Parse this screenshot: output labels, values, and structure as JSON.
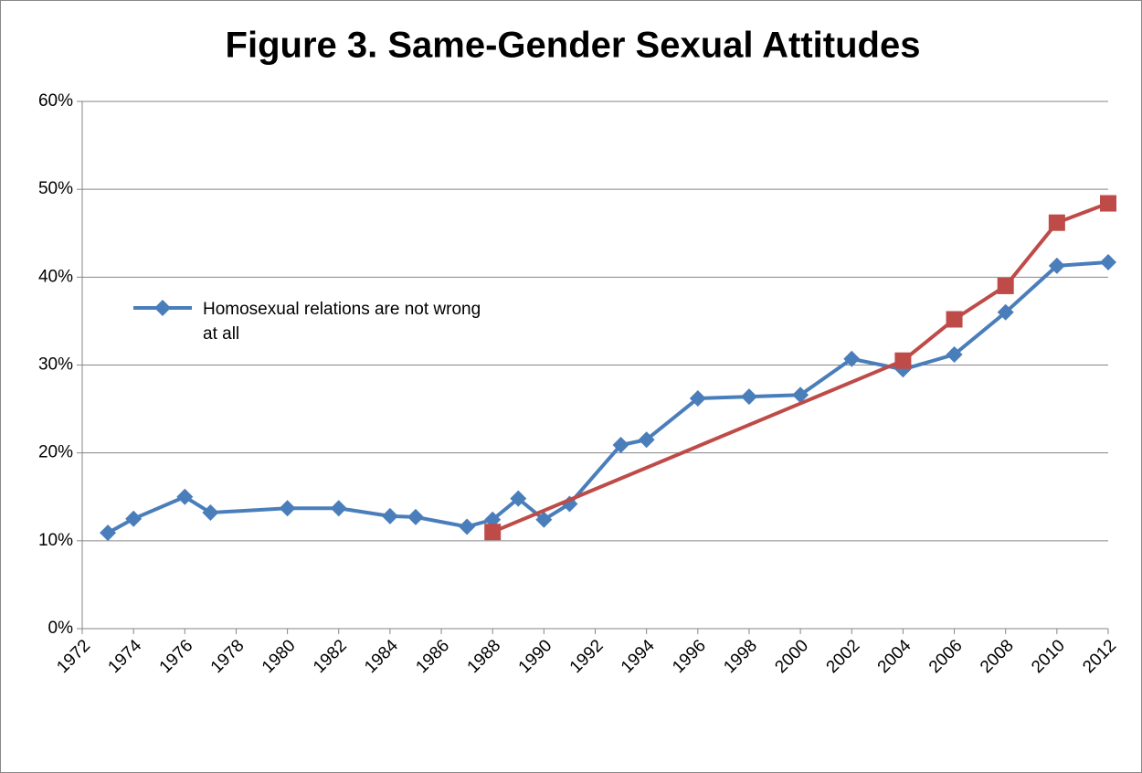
{
  "chart_data": {
    "type": "line",
    "title": "Figure 3. Same-Gender Sexual Attitudes",
    "x": [
      1973,
      1974,
      1976,
      1977,
      1980,
      1982,
      1984,
      1985,
      1987,
      1988,
      1989,
      1990,
      1991,
      1993,
      1994,
      1996,
      1998,
      2000,
      2002,
      2004,
      2006,
      2008,
      2010,
      2012
    ],
    "series": [
      {
        "name": "Homosexual relations are not wrong at all",
        "color": "#4a7ebb",
        "marker": "diamond",
        "values": [
          10.9,
          12.5,
          15.0,
          13.2,
          13.7,
          13.7,
          12.8,
          12.7,
          11.6,
          12.4,
          14.8,
          12.4,
          14.2,
          20.9,
          21.5,
          26.2,
          26.4,
          26.6,
          30.7,
          29.5,
          31.2,
          36.0,
          41.3,
          41.7
        ]
      },
      {
        "color": "#be4b48",
        "marker": "square",
        "values": [
          null,
          null,
          null,
          null,
          null,
          null,
          null,
          null,
          null,
          11.0,
          null,
          null,
          null,
          null,
          null,
          null,
          null,
          null,
          null,
          30.5,
          35.2,
          39.0,
          46.2,
          48.4
        ]
      }
    ],
    "xlim": [
      1972,
      2012
    ],
    "xticks": [
      1972,
      1974,
      1976,
      1978,
      1980,
      1982,
      1984,
      1986,
      1988,
      1990,
      1992,
      1994,
      1996,
      1998,
      2000,
      2002,
      2004,
      2006,
      2008,
      2010,
      2012
    ],
    "ylim": [
      0,
      60
    ],
    "yticks": [
      {
        "value": 0,
        "label": "0%"
      },
      {
        "value": 10,
        "label": "10%"
      },
      {
        "value": 20,
        "label": "20%"
      },
      {
        "value": 30,
        "label": "30%"
      },
      {
        "value": 40,
        "label": "40%"
      },
      {
        "value": 50,
        "label": "50%"
      },
      {
        "value": 60,
        "label": "60%"
      }
    ],
    "grid": true
  }
}
